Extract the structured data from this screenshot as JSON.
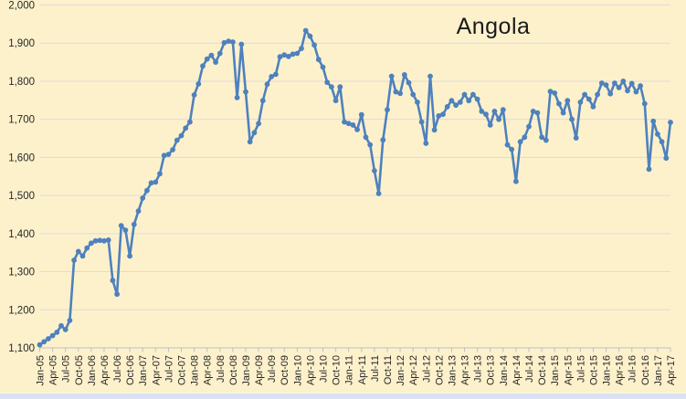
{
  "chart_data": {
    "type": "line",
    "title": "Angola",
    "xlabel": "",
    "ylabel": "",
    "ylim": [
      1100,
      2000
    ],
    "grid": true,
    "legend_position": "none",
    "x_tick_every": 3,
    "y_ticks": [
      1100,
      1200,
      1300,
      1400,
      1500,
      1600,
      1700,
      1800,
      1900,
      2000
    ],
    "y_tick_labels": [
      "1,100",
      "1,200",
      "1,300",
      "1,400",
      "1,500",
      "1,600",
      "1,700",
      "1,800",
      "1,900",
      "2,000"
    ],
    "months": [
      "Jan-05",
      "Feb-05",
      "Mar-05",
      "Apr-05",
      "May-05",
      "Jun-05",
      "Jul-05",
      "Aug-05",
      "Sep-05",
      "Oct-05",
      "Nov-05",
      "Dec-05",
      "Jan-06",
      "Feb-06",
      "Mar-06",
      "Apr-06",
      "May-06",
      "Jun-06",
      "Jul-06",
      "Aug-06",
      "Sep-06",
      "Oct-06",
      "Nov-06",
      "Dec-06",
      "Jan-07",
      "Feb-07",
      "Mar-07",
      "Apr-07",
      "May-07",
      "Jun-07",
      "Jul-07",
      "Aug-07",
      "Sep-07",
      "Oct-07",
      "Nov-07",
      "Dec-07",
      "Jan-08",
      "Feb-08",
      "Mar-08",
      "Apr-08",
      "May-08",
      "Jun-08",
      "Jul-08",
      "Aug-08",
      "Sep-08",
      "Oct-08",
      "Nov-08",
      "Dec-08",
      "Jan-09",
      "Feb-09",
      "Mar-09",
      "Apr-09",
      "May-09",
      "Jun-09",
      "Jul-09",
      "Aug-09",
      "Sep-09",
      "Oct-09",
      "Nov-09",
      "Dec-09",
      "Jan-10",
      "Feb-10",
      "Mar-10",
      "Apr-10",
      "May-10",
      "Jun-10",
      "Jul-10",
      "Aug-10",
      "Sep-10",
      "Oct-10",
      "Nov-10",
      "Dec-10",
      "Jan-11",
      "Feb-11",
      "Mar-11",
      "Apr-11",
      "May-11",
      "Jun-11",
      "Jul-11",
      "Aug-11",
      "Sep-11",
      "Oct-11",
      "Nov-11",
      "Dec-11",
      "Jan-12",
      "Feb-12",
      "Mar-12",
      "Apr-12",
      "May-12",
      "Jun-12",
      "Jul-12",
      "Aug-12",
      "Sep-12",
      "Oct-12",
      "Nov-12",
      "Dec-12",
      "Jan-13",
      "Feb-13",
      "Mar-13",
      "Apr-13",
      "May-13",
      "Jun-13",
      "Jul-13",
      "Aug-13",
      "Sep-13",
      "Oct-13",
      "Nov-13",
      "Dec-13",
      "Jan-14",
      "Feb-14",
      "Mar-14",
      "Apr-14",
      "May-14",
      "Jun-14",
      "Jul-14",
      "Aug-14",
      "Sep-14",
      "Oct-14",
      "Nov-14",
      "Dec-14",
      "Jan-15",
      "Feb-15",
      "Mar-15",
      "Apr-15",
      "May-15",
      "Jun-15",
      "Jul-15",
      "Aug-15",
      "Sep-15",
      "Oct-15",
      "Nov-15",
      "Dec-15",
      "Jan-16",
      "Feb-16",
      "Mar-16",
      "Apr-16",
      "May-16",
      "Jun-16",
      "Jul-16",
      "Aug-16",
      "Sep-16",
      "Oct-16",
      "Nov-16",
      "Dec-16",
      "Jan-17",
      "Feb-17",
      "Mar-17",
      "Apr-17"
    ],
    "values": [
      1108,
      1116,
      1124,
      1132,
      1141,
      1158,
      1148,
      1172,
      1330,
      1353,
      1341,
      1362,
      1375,
      1381,
      1382,
      1381,
      1383,
      1277,
      1241,
      1421,
      1409,
      1341,
      1424,
      1459,
      1493,
      1513,
      1533,
      1535,
      1557,
      1605,
      1608,
      1620,
      1645,
      1657,
      1677,
      1693,
      1764,
      1793,
      1840,
      1858,
      1868,
      1850,
      1873,
      1901,
      1905,
      1903,
      1757,
      1897,
      1772,
      1641,
      1665,
      1689,
      1749,
      1792,
      1812,
      1818,
      1864,
      1869,
      1865,
      1871,
      1873,
      1886,
      1933,
      1918,
      1895,
      1857,
      1837,
      1797,
      1785,
      1749,
      1785,
      1693,
      1689,
      1685,
      1673,
      1712,
      1653,
      1633,
      1565,
      1505,
      1646,
      1725,
      1813,
      1772,
      1768,
      1817,
      1796,
      1765,
      1745,
      1693,
      1637,
      1813,
      1672,
      1709,
      1713,
      1733,
      1749,
      1737,
      1745,
      1765,
      1749,
      1765,
      1753,
      1721,
      1713,
      1685,
      1721,
      1700,
      1725,
      1633,
      1621,
      1537,
      1641,
      1653,
      1681,
      1721,
      1717,
      1653,
      1645,
      1773,
      1769,
      1741,
      1717,
      1749,
      1700,
      1651,
      1745,
      1765,
      1753,
      1733,
      1765,
      1795,
      1790,
      1767,
      1795,
      1783,
      1800,
      1775,
      1794,
      1772,
      1788,
      1741,
      1569,
      1695,
      1661,
      1641,
      1598,
      1692
    ],
    "colors": {
      "background": "#FDF1CC",
      "line": "#4E81BD",
      "marker": "#4E81BD",
      "gridline": "#DBDBDB",
      "axis": "#BFBFBF",
      "tick": "#BFBFBF",
      "label": "#262626",
      "title": "#1a1a1a",
      "worksheet_strip": "#D9E1F2"
    }
  }
}
